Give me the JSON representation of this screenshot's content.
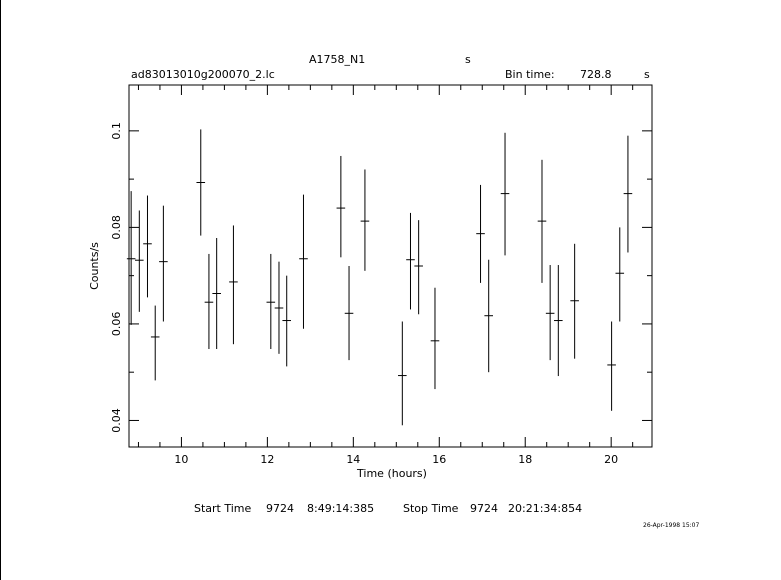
{
  "header": {
    "object": "A1758_N1",
    "object_unit": "s",
    "filename": "ad83013010g200070_2.lc",
    "bin_label": "Bin time:",
    "bin_value": "728.8",
    "bin_unit": "s"
  },
  "footer": {
    "start_label": "Start Time",
    "start_day": "9724",
    "start_time": "8:49:14:385",
    "stop_label": "Stop Time",
    "stop_day": "9724",
    "stop_time": "20:21:34:854",
    "stamp": "26-Apr-1998 15:07"
  },
  "chart_data": {
    "type": "scatter",
    "xlabel": "Time (hours)",
    "ylabel": "Counts/s",
    "xlim": [
      8.78,
      20.95
    ],
    "ylim": [
      0.0345,
      0.1095
    ],
    "xticks": [
      10,
      12,
      14,
      16,
      18,
      20
    ],
    "yticks": [
      0.04,
      0.06,
      0.08,
      0.1
    ],
    "ytick_labels": [
      "0.04",
      "0.06",
      "0.08",
      "0.1"
    ],
    "error_bars": true,
    "points": [
      {
        "x": 8.83,
        "y": 0.0735,
        "xerr": 0.1,
        "ylo": 0.0598,
        "yhi": 0.0875
      },
      {
        "x": 9.02,
        "y": 0.0732,
        "xerr": 0.1,
        "ylo": 0.0625,
        "yhi": 0.0835
      },
      {
        "x": 9.21,
        "y": 0.0766,
        "xerr": 0.1,
        "ylo": 0.0655,
        "yhi": 0.0866
      },
      {
        "x": 9.39,
        "y": 0.0573,
        "xerr": 0.1,
        "ylo": 0.0483,
        "yhi": 0.0638
      },
      {
        "x": 9.58,
        "y": 0.0729,
        "xerr": 0.1,
        "ylo": 0.0605,
        "yhi": 0.0845
      },
      {
        "x": 10.45,
        "y": 0.0893,
        "xerr": 0.1,
        "ylo": 0.0783,
        "yhi": 0.1003
      },
      {
        "x": 10.64,
        "y": 0.0645,
        "xerr": 0.1,
        "ylo": 0.0548,
        "yhi": 0.0745
      },
      {
        "x": 10.82,
        "y": 0.0663,
        "xerr": 0.1,
        "ylo": 0.0548,
        "yhi": 0.0778
      },
      {
        "x": 11.21,
        "y": 0.0687,
        "xerr": 0.1,
        "ylo": 0.0558,
        "yhi": 0.0804
      },
      {
        "x": 12.08,
        "y": 0.0645,
        "xerr": 0.1,
        "ylo": 0.0548,
        "yhi": 0.0745
      },
      {
        "x": 12.27,
        "y": 0.0633,
        "xerr": 0.1,
        "ylo": 0.0538,
        "yhi": 0.0729
      },
      {
        "x": 12.45,
        "y": 0.0607,
        "xerr": 0.1,
        "ylo": 0.0512,
        "yhi": 0.07
      },
      {
        "x": 12.84,
        "y": 0.0735,
        "xerr": 0.1,
        "ylo": 0.059,
        "yhi": 0.0868
      },
      {
        "x": 13.71,
        "y": 0.084,
        "xerr": 0.1,
        "ylo": 0.0738,
        "yhi": 0.0948
      },
      {
        "x": 13.9,
        "y": 0.0622,
        "xerr": 0.1,
        "ylo": 0.0525,
        "yhi": 0.072
      },
      {
        "x": 14.27,
        "y": 0.0813,
        "xerr": 0.1,
        "ylo": 0.071,
        "yhi": 0.092
      },
      {
        "x": 15.14,
        "y": 0.0493,
        "xerr": 0.1,
        "ylo": 0.039,
        "yhi": 0.0605
      },
      {
        "x": 15.33,
        "y": 0.0733,
        "xerr": 0.1,
        "ylo": 0.063,
        "yhi": 0.083
      },
      {
        "x": 15.52,
        "y": 0.072,
        "xerr": 0.1,
        "ylo": 0.062,
        "yhi": 0.0815
      },
      {
        "x": 15.9,
        "y": 0.0565,
        "xerr": 0.1,
        "ylo": 0.0465,
        "yhi": 0.0675
      },
      {
        "x": 16.96,
        "y": 0.0787,
        "xerr": 0.1,
        "ylo": 0.0685,
        "yhi": 0.0888
      },
      {
        "x": 17.15,
        "y": 0.0617,
        "xerr": 0.1,
        "ylo": 0.05,
        "yhi": 0.0733
      },
      {
        "x": 17.53,
        "y": 0.087,
        "xerr": 0.1,
        "ylo": 0.0742,
        "yhi": 0.0996
      },
      {
        "x": 18.39,
        "y": 0.0813,
        "xerr": 0.1,
        "ylo": 0.0685,
        "yhi": 0.094
      },
      {
        "x": 18.58,
        "y": 0.0622,
        "xerr": 0.1,
        "ylo": 0.0525,
        "yhi": 0.0722
      },
      {
        "x": 18.77,
        "y": 0.0607,
        "xerr": 0.1,
        "ylo": 0.0492,
        "yhi": 0.0722
      },
      {
        "x": 19.15,
        "y": 0.0648,
        "xerr": 0.1,
        "ylo": 0.0528,
        "yhi": 0.0766
      },
      {
        "x": 20.01,
        "y": 0.0515,
        "xerr": 0.1,
        "ylo": 0.042,
        "yhi": 0.0605
      },
      {
        "x": 20.2,
        "y": 0.0705,
        "xerr": 0.1,
        "ylo": 0.0605,
        "yhi": 0.08
      },
      {
        "x": 20.39,
        "y": 0.087,
        "xerr": 0.1,
        "ylo": 0.0748,
        "yhi": 0.099
      }
    ]
  }
}
